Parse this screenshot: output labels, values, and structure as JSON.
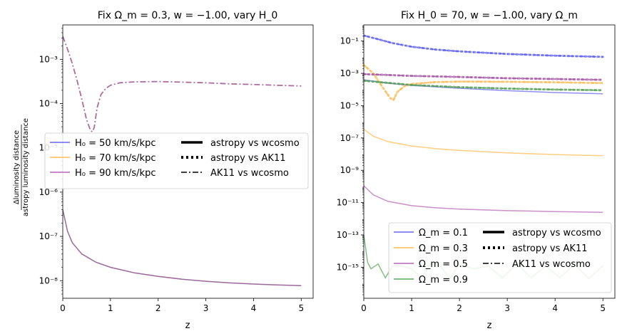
{
  "chart_data": [
    {
      "type": "line",
      "title": "Fix Ω_m = 0.3, w = −1.00, vary H_0",
      "xlabel": "z",
      "ylabel_top": "Δluminosity distance",
      "ylabel_bottom": "astropy luminosity distance",
      "xlim": [
        0,
        5.25
      ],
      "ylim": [
        4e-09,
        0.006
      ],
      "yscale": "log",
      "x_ticks": [
        "0",
        "1",
        "2",
        "3",
        "4",
        "5"
      ],
      "y_ticks": [
        "10⁻⁸",
        "10⁻⁷",
        "10⁻⁶",
        "10⁻⁵",
        "10⁻⁴",
        "10⁻³"
      ],
      "legend": {
        "series_entries": [
          {
            "label": "H₀ = 50 km/s/kpc",
            "color": "#7b7bf0"
          },
          {
            "label": "H₀ = 70 km/s/kpc",
            "color": "#ffc56b"
          },
          {
            "label": "H₀ = 90 km/s/kpc",
            "color": "#c07dc0"
          }
        ],
        "style_entries": [
          {
            "label": "astropy vs wcosmo",
            "style": "solid"
          },
          {
            "label": "astropy vs AK11",
            "style": "dotted"
          },
          {
            "label": "AK11 vs wcosmo",
            "style": "dashdot"
          }
        ]
      },
      "series": [
        {
          "name": "astropy vs wcosmo (all H₀)",
          "style": "solid",
          "color": "#8a4d8a",
          "points": [
            [
              0,
              4e-07
            ],
            [
              0.1,
              1.3e-07
            ],
            [
              0.2,
              7.2e-08
            ],
            [
              0.4,
              4e-08
            ],
            [
              0.7,
              2.6e-08
            ],
            [
              1,
              2e-08
            ],
            [
              1.5,
              1.5e-08
            ],
            [
              2,
              1.25e-08
            ],
            [
              2.5,
              1.08e-08
            ],
            [
              3,
              9.7e-09
            ],
            [
              3.5,
              8.9e-09
            ],
            [
              4,
              8.4e-09
            ],
            [
              4.5,
              8e-09
            ],
            [
              5,
              7.7e-09
            ]
          ]
        },
        {
          "name": "AK11 vs wcosmo (all H₀)",
          "style": "dashdot",
          "color": "#8a2d6e",
          "points": [
            [
              0,
              0.0033
            ],
            [
              0.1,
              0.0017
            ],
            [
              0.2,
              0.0008
            ],
            [
              0.3,
              0.00033
            ],
            [
              0.4,
              0.000125
            ],
            [
              0.5,
              4.3e-05
            ],
            [
              0.58,
              2.5e-05
            ],
            [
              0.62,
              2.3e-05
            ],
            [
              0.66,
              2.9e-05
            ],
            [
              0.72,
              8e-05
            ],
            [
              0.8,
              0.00016
            ],
            [
              0.9,
              0.00022
            ],
            [
              1,
              0.00026
            ],
            [
              1.2,
              0.000295
            ],
            [
              1.5,
              0.00031
            ],
            [
              2,
              0.000315
            ],
            [
              2.5,
              0.000305
            ],
            [
              3,
              0.000295
            ],
            [
              3.5,
              0.00028
            ],
            [
              4,
              0.00027
            ],
            [
              4.5,
              0.00026
            ],
            [
              5,
              0.00025
            ]
          ]
        }
      ]
    },
    {
      "type": "line",
      "title": "Fix H_0 = 70, w = −1.00, vary Ω_m",
      "xlabel": "z",
      "xlim": [
        0,
        5.25
      ],
      "ylim": [
        1.2e-17,
        1
      ],
      "yscale": "log",
      "x_ticks": [
        "0",
        "1",
        "2",
        "3",
        "4",
        "5"
      ],
      "y_ticks": [
        "10⁻¹⁵",
        "10⁻¹³",
        "10⁻¹¹",
        "10⁻⁹",
        "10⁻⁷",
        "10⁻⁵",
        "10⁻³",
        "10⁻¹"
      ],
      "legend": {
        "series_entries": [
          {
            "label": "Ω_m = 0.1",
            "color": "#7b7bf0"
          },
          {
            "label": "Ω_m = 0.3",
            "color": "#ffc56b"
          },
          {
            "label": "Ω_m = 0.5",
            "color": "#c07dc0"
          },
          {
            "label": "Ω_m = 0.9",
            "color": "#6fb56f"
          }
        ],
        "style_entries": [
          {
            "label": "astropy vs wcosmo",
            "style": "solid"
          },
          {
            "label": "astropy vs AK11",
            "style": "dotted"
          },
          {
            "label": "AK11 vs wcosmo",
            "style": "dashdot"
          }
        ]
      },
      "series": [
        {
          "name": "Ω_m = 0.1 astropy vs wcosmo",
          "style": "solid",
          "color": "#7b7bf0",
          "points": [
            [
              0,
              0.0004
            ],
            [
              0.5,
              0.00025
            ],
            [
              1,
              0.00018
            ],
            [
              2,
              0.00012
            ],
            [
              3,
              8.5e-05
            ],
            [
              4,
              6.5e-05
            ],
            [
              5,
              5.5e-05
            ]
          ]
        },
        {
          "name": "Ω_m = 0.1 astropy vs AK11",
          "style": "dotted",
          "color": "#5555ee",
          "points": [
            [
              0,
              0.22
            ],
            [
              0.3,
              0.13
            ],
            [
              0.6,
              0.075
            ],
            [
              1,
              0.045
            ],
            [
              1.5,
              0.03
            ],
            [
              2,
              0.023
            ],
            [
              3,
              0.016
            ],
            [
              4,
              0.0125
            ],
            [
              5,
              0.0105
            ]
          ]
        },
        {
          "name": "Ω_m = 0.1 AK11 vs wcosmo",
          "style": "dashdot",
          "color": "#5555ee",
          "points": [
            [
              0,
              0.22
            ],
            [
              0.3,
              0.13
            ],
            [
              0.6,
              0.075
            ],
            [
              1,
              0.045
            ],
            [
              1.5,
              0.03
            ],
            [
              2,
              0.023
            ],
            [
              3,
              0.016
            ],
            [
              4,
              0.0125
            ],
            [
              5,
              0.0105
            ]
          ]
        },
        {
          "name": "Ω_m = 0.3 astropy vs wcosmo",
          "style": "solid",
          "color": "#ffc56b",
          "points": [
            [
              0,
              3.5e-07
            ],
            [
              0.2,
              1.3e-07
            ],
            [
              0.5,
              6e-08
            ],
            [
              1,
              3.2e-08
            ],
            [
              1.5,
              2.2e-08
            ],
            [
              2,
              1.7e-08
            ],
            [
              3,
              1.2e-08
            ],
            [
              4,
              9.5e-09
            ],
            [
              5,
              8e-09
            ]
          ]
        },
        {
          "name": "Ω_m = 0.3 astropy vs AK11",
          "style": "dotted",
          "color": "#ffb84d",
          "points": [
            [
              0,
              0.0033
            ],
            [
              0.2,
              0.001
            ],
            [
              0.4,
              0.00013
            ],
            [
              0.55,
              3e-05
            ],
            [
              0.62,
              2.2e-05
            ],
            [
              0.7,
              7e-05
            ],
            [
              0.85,
              0.00016
            ],
            [
              1,
              0.00022
            ],
            [
              1.5,
              0.00029
            ],
            [
              2,
              0.00031
            ],
            [
              3,
              0.0003
            ],
            [
              4,
              0.00028
            ],
            [
              5,
              0.00025
            ]
          ]
        },
        {
          "name": "Ω_m = 0.3 AK11 vs wcosmo",
          "style": "dashdot",
          "color": "#ffb84d",
          "points": [
            [
              0,
              0.0033
            ],
            [
              0.2,
              0.001
            ],
            [
              0.4,
              0.00013
            ],
            [
              0.55,
              3e-05
            ],
            [
              0.62,
              2.2e-05
            ],
            [
              0.7,
              7e-05
            ],
            [
              0.85,
              0.00016
            ],
            [
              1,
              0.00022
            ],
            [
              1.5,
              0.00029
            ],
            [
              2,
              0.00031
            ],
            [
              3,
              0.0003
            ],
            [
              4,
              0.00028
            ],
            [
              5,
              0.00025
            ]
          ]
        },
        {
          "name": "Ω_m = 0.5 astropy vs wcosmo",
          "style": "solid",
          "color": "#c07dc0",
          "points": [
            [
              0,
              1.1e-10
            ],
            [
              0.2,
              3e-11
            ],
            [
              0.5,
              1.2e-11
            ],
            [
              1,
              6.5e-12
            ],
            [
              1.5,
              4.8e-12
            ],
            [
              2,
              4e-12
            ],
            [
              3,
              3.2e-12
            ],
            [
              4,
              2.8e-12
            ],
            [
              5,
              2.5e-12
            ]
          ]
        },
        {
          "name": "Ω_m = 0.5 astropy vs AK11",
          "style": "dotted",
          "color": "#a04da0",
          "points": [
            [
              0,
              0.0009
            ],
            [
              0.5,
              0.0008
            ],
            [
              1,
              0.0007
            ],
            [
              2,
              0.0006
            ],
            [
              3,
              0.0005
            ],
            [
              4,
              0.00045
            ],
            [
              5,
              0.0004
            ]
          ]
        },
        {
          "name": "Ω_m = 0.5 AK11 vs wcosmo",
          "style": "dashdot",
          "color": "#a04da0",
          "points": [
            [
              0,
              0.0009
            ],
            [
              0.5,
              0.0008
            ],
            [
              1,
              0.0007
            ],
            [
              2,
              0.0006
            ],
            [
              3,
              0.0005
            ],
            [
              4,
              0.00045
            ],
            [
              5,
              0.0004
            ]
          ]
        },
        {
          "name": "Ω_m = 0.9 astropy vs AK11",
          "style": "dotted",
          "color": "#4c9a4c",
          "points": [
            [
              0,
              0.00035
            ],
            [
              0.5,
              0.00026
            ],
            [
              1,
              0.00019
            ],
            [
              2,
              0.00014
            ],
            [
              3,
              0.000115
            ],
            [
              4,
              0.0001
            ],
            [
              5,
              9e-05
            ]
          ]
        },
        {
          "name": "Ω_m = 0.9 AK11 vs wcosmo",
          "style": "dashdot",
          "color": "#4c9a4c",
          "points": [
            [
              0,
              0.00035
            ],
            [
              0.5,
              0.00026
            ],
            [
              1,
              0.00019
            ],
            [
              2,
              0.00014
            ],
            [
              3,
              0.000115
            ],
            [
              4,
              0.0001
            ],
            [
              5,
              9e-05
            ]
          ]
        },
        {
          "name": "Ω_m = 0.9 astropy vs wcosmo (noise floor)",
          "style": "solid",
          "color": "#6fb56f",
          "points": [
            [
              0,
              1e-13
            ],
            [
              0.08,
              2e-15
            ],
            [
              0.15,
              8e-16
            ],
            [
              0.3,
              1.6e-15
            ],
            [
              0.45,
              2.2e-16
            ],
            [
              0.6,
              1.2e-15
            ],
            [
              0.8,
              1.2e-15
            ],
            [
              1,
              8e-16
            ],
            [
              1.2,
              2.2e-16
            ],
            [
              1.4,
              1.6e-15
            ],
            [
              1.6,
              1.2e-15
            ],
            [
              1.8,
              2e-16
            ],
            [
              2,
              1.6e-15
            ],
            [
              2.3,
              8e-16
            ],
            [
              2.6,
              1.2e-15
            ],
            [
              2.9,
              2.2e-16
            ],
            [
              3.2,
              1.6e-15
            ],
            [
              3.5,
              2.2e-16
            ],
            [
              3.8,
              1.2e-15
            ],
            [
              4.1,
              2.2e-16
            ],
            [
              4.4,
              1.6e-15
            ],
            [
              4.7,
              2e-16
            ],
            [
              5,
              1.2e-15
            ]
          ]
        }
      ]
    }
  ]
}
